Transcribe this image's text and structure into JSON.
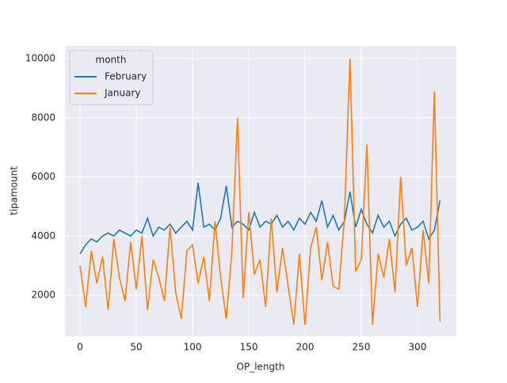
{
  "chart_data": {
    "type": "line",
    "xlabel": "OP_length",
    "ylabel": "tipamount",
    "xlim": [
      -13.4,
      334.5
    ],
    "ylim": [
      609,
      10428
    ],
    "xticks": [
      0,
      50,
      100,
      150,
      200,
      250,
      300
    ],
    "yticks": [
      2000,
      4000,
      6000,
      8000,
      10000
    ],
    "grid": true,
    "legend_title": "month",
    "legend_position": "upper left",
    "x": [
      0,
      5,
      10,
      15,
      20,
      25,
      30,
      35,
      40,
      45,
      50,
      55,
      60,
      65,
      70,
      75,
      80,
      85,
      90,
      95,
      100,
      105,
      110,
      115,
      120,
      125,
      130,
      135,
      140,
      145,
      150,
      155,
      160,
      165,
      170,
      175,
      180,
      185,
      190,
      195,
      200,
      205,
      210,
      215,
      220,
      225,
      230,
      235,
      240,
      245,
      250,
      255,
      260,
      265,
      270,
      275,
      280,
      285,
      290,
      295,
      300,
      305,
      310,
      315,
      320
    ],
    "series": [
      {
        "name": "February",
        "color": "#1f77b4",
        "values": [
          3400,
          3700,
          3900,
          3800,
          4000,
          4100,
          4000,
          4200,
          4100,
          4000,
          4200,
          4100,
          4600,
          4000,
          4300,
          4200,
          4400,
          4100,
          4300,
          4500,
          4200,
          5800,
          4300,
          4400,
          4200,
          4600,
          5700,
          4300,
          4500,
          4400,
          4200,
          4800,
          4300,
          4500,
          4400,
          4700,
          4300,
          4500,
          4200,
          4600,
          4400,
          4800,
          4500,
          5200,
          4300,
          4700,
          4200,
          4500,
          5500,
          4300,
          4900,
          4400,
          4100,
          4700,
          4300,
          4500,
          4000,
          4400,
          4600,
          4200,
          4300,
          4500,
          3900,
          4200,
          5200
        ]
      },
      {
        "name": "January",
        "color": "#ff7f0e",
        "values": [
          3000,
          1600,
          3500,
          2400,
          3300,
          1500,
          3900,
          2600,
          1800,
          3800,
          2200,
          4000,
          1500,
          3200,
          2600,
          1800,
          4300,
          2100,
          1200,
          3500,
          3700,
          2400,
          3300,
          1800,
          4500,
          2600,
          1200,
          3500,
          8000,
          1900,
          4800,
          2700,
          3200,
          1600,
          4600,
          2100,
          3600,
          2300,
          1000,
          3400,
          1000,
          3600,
          4300,
          2500,
          3800,
          2300,
          2200,
          4600,
          10000,
          2800,
          3200,
          7100,
          1000,
          3400,
          2600,
          3900,
          2100,
          6000,
          3000,
          3600,
          1600,
          4200,
          2400,
          8900,
          1100
        ]
      }
    ]
  }
}
